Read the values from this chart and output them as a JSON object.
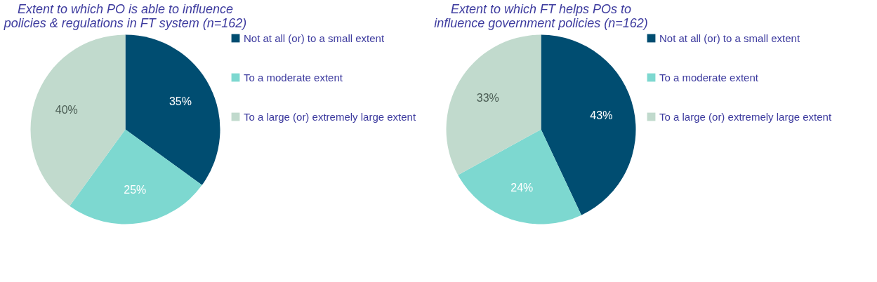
{
  "chart_data": [
    {
      "type": "pie",
      "title": "Extent to which PO is able to influence policies & regulations in FT system (n=162)",
      "categories": [
        "Not at all (or) to a small extent",
        "To a moderate extent",
        "To a large (or) extremely large extent"
      ],
      "values": [
        35,
        25,
        40
      ],
      "colors": [
        "#004d71",
        "#7dd8d0",
        "#c1dacd"
      ],
      "value_labels": [
        "35%",
        "25%",
        "40%"
      ],
      "legend": "right"
    },
    {
      "type": "pie",
      "title": "Extent to which FT helps POs to influence government policies (n=162)",
      "categories": [
        "Not at all (or) to a small extent",
        "To a moderate extent",
        "To a large (or) extremely large extent"
      ],
      "values": [
        43,
        24,
        33
      ],
      "colors": [
        "#004d71",
        "#7dd8d0",
        "#c1dacd"
      ],
      "value_labels": [
        "43%",
        "24%",
        "33%"
      ],
      "legend": "right"
    }
  ]
}
